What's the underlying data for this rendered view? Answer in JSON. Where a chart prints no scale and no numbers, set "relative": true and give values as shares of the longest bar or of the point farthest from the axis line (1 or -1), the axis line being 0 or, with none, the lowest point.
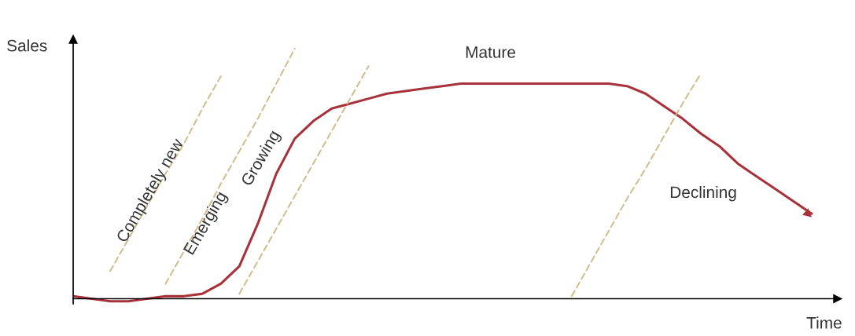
{
  "chart_data": {
    "type": "line",
    "relative": true,
    "xlabel": "Time",
    "ylabel": "Sales",
    "categories": [
      null,
      null,
      null,
      null,
      null,
      null,
      null,
      null,
      null,
      null,
      null,
      null,
      null,
      null,
      null,
      null,
      null,
      null,
      null,
      null,
      null,
      null,
      null,
      null,
      null,
      null,
      null,
      null,
      null,
      null,
      null,
      null,
      null,
      null,
      null,
      null,
      null,
      null,
      null,
      null,
      null
    ],
    "series": [
      {
        "color": "#a8323a",
        "line_style": "solid",
        "values": [
          0.01,
          0,
          -0.01,
          -0.01,
          0,
          0.01,
          0.01,
          0.02,
          0.06,
          0.13,
          0.3,
          0.5,
          0.64,
          0.71,
          0.76,
          0.78,
          0.8,
          0.82,
          0.83,
          0.84,
          0.85,
          0.86,
          0.86,
          0.86,
          0.86,
          0.86,
          0.86,
          0.86,
          0.86,
          0.86,
          0.85,
          0.82,
          0.77,
          0.72,
          0.66,
          0.61,
          0.54,
          0.49,
          0.44,
          0.39,
          0.34
        ]
      },
      {
        "color": "#d4b98a",
        "line_style": "dashed",
        "values": [
          null,
          null,
          0.11,
          0.24,
          0.37,
          0.5,
          0.62,
          0.76,
          0.89,
          null,
          null,
          null,
          null,
          null,
          null,
          null,
          null,
          null,
          null,
          null,
          null,
          null,
          null,
          null,
          null,
          null,
          null,
          null,
          null,
          null,
          null,
          null,
          null,
          null,
          null,
          null,
          null,
          null,
          null,
          null,
          null
        ]
      },
      {
        "color": "#d4b98a",
        "line_style": "dashed",
        "values": [
          null,
          null,
          null,
          null,
          null,
          0.06,
          0.19,
          0.32,
          0.46,
          0.59,
          0.72,
          0.86,
          1.0,
          null,
          null,
          null,
          null,
          null,
          null,
          null,
          null,
          null,
          null,
          null,
          null,
          null,
          null,
          null,
          null,
          null,
          null,
          null,
          null,
          null,
          null,
          null,
          null,
          null,
          null,
          null,
          null
        ]
      },
      {
        "color": "#d4b98a",
        "line_style": "dashed",
        "values": [
          null,
          null,
          null,
          null,
          null,
          null,
          null,
          null,
          null,
          0.02,
          0.15,
          0.28,
          0.41,
          0.54,
          0.67,
          0.8,
          0.93,
          null,
          null,
          null,
          null,
          null,
          null,
          null,
          null,
          null,
          null,
          null,
          null,
          null,
          null,
          null,
          null,
          null,
          null,
          null,
          null,
          null,
          null,
          null,
          null
        ]
      },
      {
        "color": "#d4b98a",
        "line_style": "dashed",
        "values": [
          null,
          null,
          null,
          null,
          null,
          null,
          null,
          null,
          null,
          null,
          null,
          null,
          null,
          null,
          null,
          null,
          null,
          null,
          null,
          null,
          null,
          null,
          null,
          null,
          null,
          null,
          null,
          0.01,
          0.14,
          0.27,
          0.4,
          0.52,
          0.65,
          0.78,
          0.9,
          null,
          null,
          null,
          null,
          null,
          null
        ]
      }
    ],
    "annotations": [
      "Completely new",
      "Emerging",
      "Growing",
      "Mature",
      "Declining"
    ],
    "grid": false,
    "legend": false,
    "marker": "none"
  }
}
